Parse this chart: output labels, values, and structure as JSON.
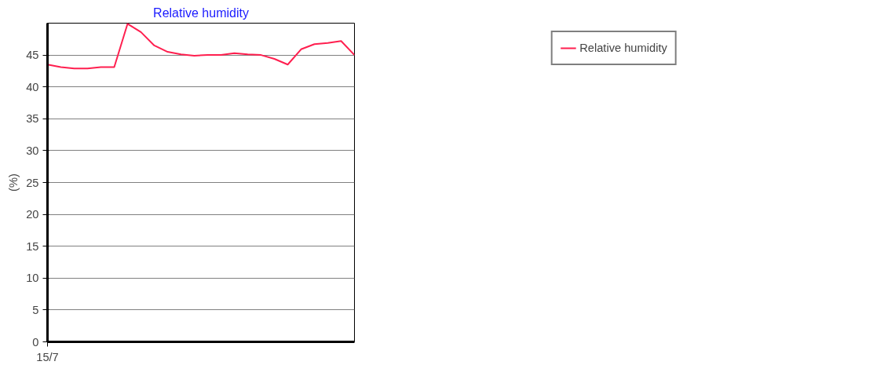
{
  "chart_data": {
    "type": "line",
    "title": "Relative humidity",
    "ylabel": "(%)",
    "categories": [
      "15/7",
      null,
      null,
      null,
      null,
      null,
      null,
      null,
      null,
      null,
      null,
      null,
      null,
      null,
      null,
      null,
      null,
      null,
      null,
      null,
      null,
      null,
      null,
      null
    ],
    "series": [
      {
        "name": "Relative humidity",
        "color": "#ff1f4f",
        "values": [
          43.5,
          43.1,
          42.9,
          42.9,
          43.1,
          43.1,
          49.9,
          48.6,
          46.5,
          45.5,
          45.1,
          44.9,
          45.0,
          45.0,
          45.3,
          45.1,
          45.0,
          44.4,
          43.5,
          45.9,
          46.7,
          46.9,
          47.2,
          45.0
        ]
      }
    ],
    "ylim": [
      0,
      50
    ],
    "yticks": [
      0,
      5,
      10,
      15,
      20,
      25,
      30,
      35,
      40,
      45
    ],
    "grid": "y",
    "legend": "top right",
    "marker": "none",
    "line_style": "solid"
  }
}
